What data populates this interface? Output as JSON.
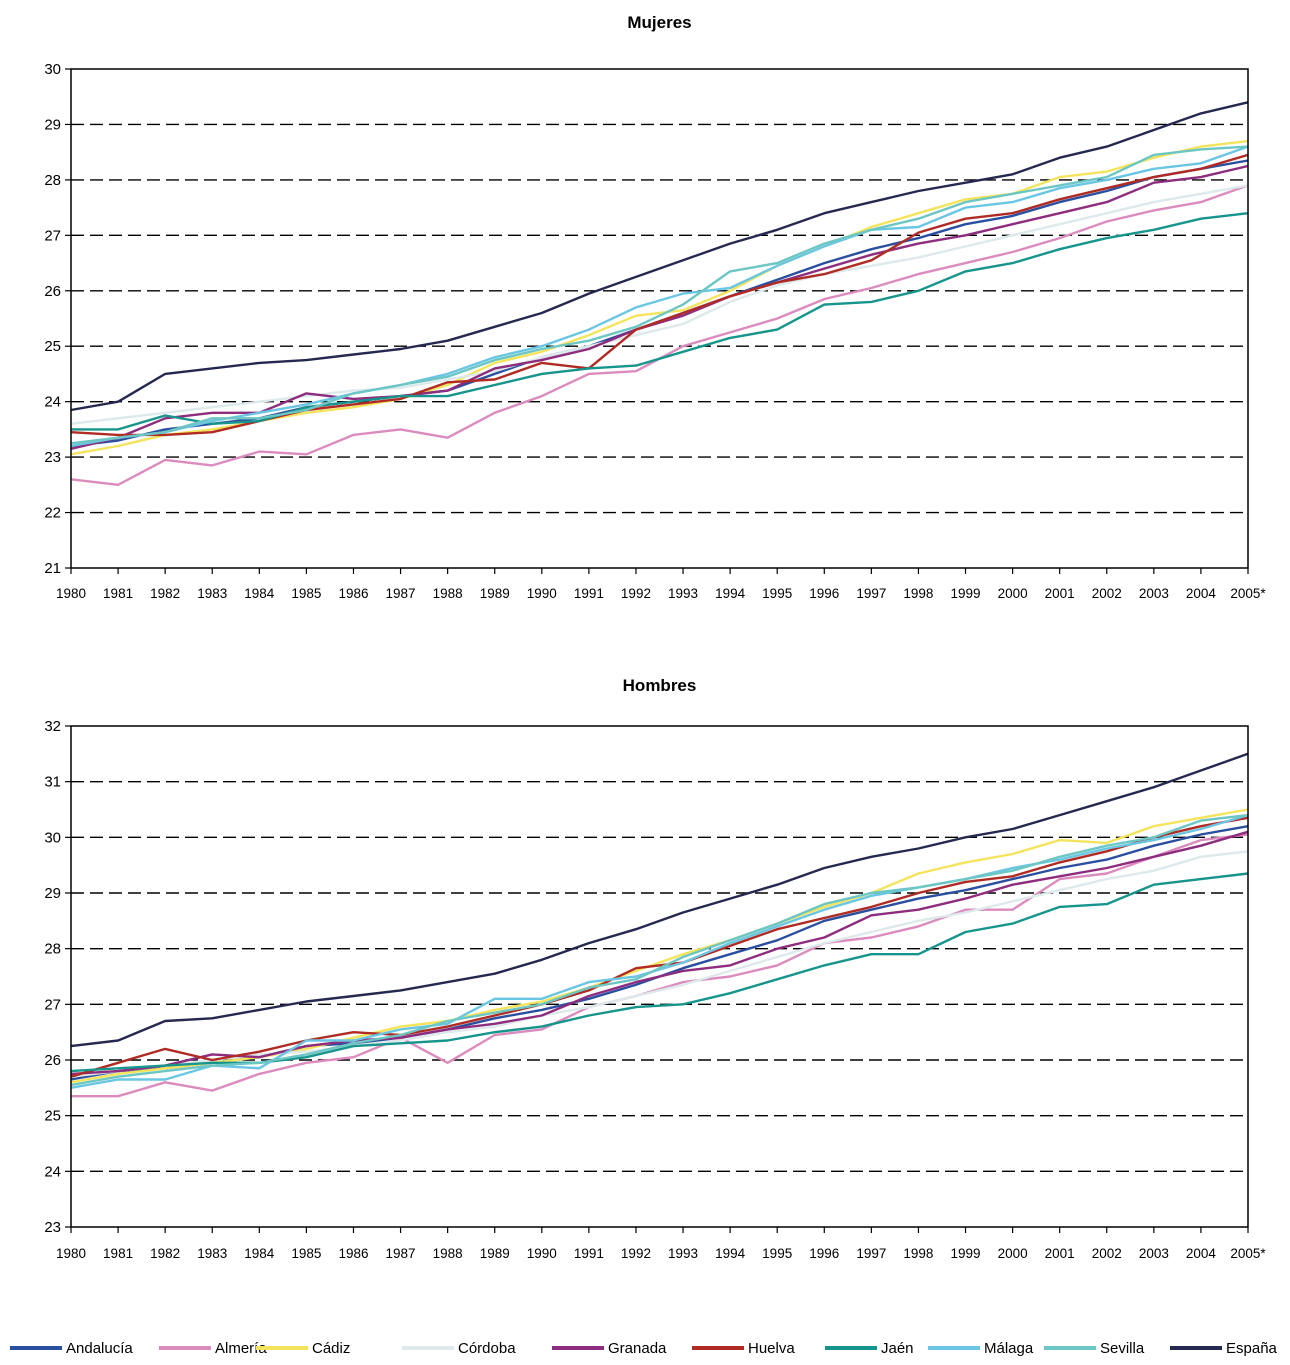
{
  "chart_data": [
    {
      "type": "line",
      "title": "Mujeres",
      "categories": [
        "1980",
        "1981",
        "1982",
        "1983",
        "1984",
        "1985",
        "1986",
        "1987",
        "1988",
        "1989",
        "1990",
        "1991",
        "1992",
        "1993",
        "1994",
        "1995",
        "1996",
        "1997",
        "1998",
        "1999",
        "2000",
        "2001",
        "2002",
        "2003",
        "2004",
        "2005*"
      ],
      "ylim": [
        21,
        30
      ],
      "yticks": [
        21,
        22,
        23,
        24,
        25,
        26,
        27,
        28,
        29,
        30
      ],
      "grid": "horizontal dashed",
      "series": [
        {
          "name": "Andalucía",
          "color": "#2a4fa0",
          "values": [
            23.2,
            23.3,
            23.5,
            23.6,
            23.7,
            23.9,
            24.0,
            24.1,
            24.2,
            24.5,
            24.8,
            25.0,
            25.3,
            25.6,
            25.9,
            26.2,
            26.5,
            26.75,
            26.95,
            27.2,
            27.35,
            27.6,
            27.8,
            28.05,
            28.2,
            28.35
          ]
        },
        {
          "name": "Almería",
          "color": "#dc8bbf",
          "values": [
            22.6,
            22.5,
            22.95,
            22.85,
            23.1,
            23.05,
            23.4,
            23.5,
            23.35,
            23.8,
            24.1,
            24.5,
            24.55,
            25.0,
            25.25,
            25.5,
            25.85,
            26.05,
            26.3,
            26.5,
            26.7,
            26.95,
            27.25,
            27.45,
            27.6,
            27.9
          ]
        },
        {
          "name": "Cádiz",
          "color": "#f4e45c",
          "values": [
            23.05,
            23.2,
            23.4,
            23.5,
            23.65,
            23.8,
            23.9,
            24.05,
            24.3,
            24.7,
            24.9,
            25.2,
            25.55,
            25.65,
            26.0,
            26.45,
            26.8,
            27.15,
            27.4,
            27.65,
            27.75,
            28.05,
            28.15,
            28.4,
            28.6,
            28.7
          ]
        },
        {
          "name": "Córdoba",
          "color": "#dde9ea",
          "values": [
            23.6,
            23.7,
            23.8,
            23.9,
            24.0,
            24.1,
            24.2,
            24.25,
            24.4,
            24.55,
            24.8,
            25.0,
            25.2,
            25.4,
            25.8,
            26.1,
            26.3,
            26.45,
            26.6,
            26.8,
            27.0,
            27.2,
            27.4,
            27.6,
            27.75,
            27.9
          ]
        },
        {
          "name": "Granada",
          "color": "#8e2c7e",
          "values": [
            23.15,
            23.35,
            23.7,
            23.8,
            23.8,
            24.15,
            24.05,
            24.1,
            24.2,
            24.6,
            24.75,
            24.95,
            25.3,
            25.55,
            25.9,
            26.15,
            26.4,
            26.65,
            26.85,
            27.0,
            27.2,
            27.4,
            27.6,
            27.95,
            28.05,
            28.25
          ]
        },
        {
          "name": "Huelva",
          "color": "#b02b24",
          "values": [
            23.45,
            23.4,
            23.4,
            23.45,
            23.65,
            23.85,
            23.95,
            24.05,
            24.35,
            24.4,
            24.7,
            24.6,
            25.3,
            25.6,
            25.9,
            26.15,
            26.3,
            26.55,
            27.05,
            27.3,
            27.4,
            27.65,
            27.85,
            28.05,
            28.2,
            28.45
          ]
        },
        {
          "name": "Jaén",
          "color": "#17958c",
          "values": [
            23.5,
            23.5,
            23.75,
            23.6,
            23.65,
            23.9,
            24.0,
            24.1,
            24.1,
            24.3,
            24.5,
            24.6,
            24.65,
            24.9,
            25.15,
            25.3,
            25.75,
            25.8,
            26.0,
            26.35,
            26.5,
            26.75,
            26.95,
            27.1,
            27.3,
            27.4
          ]
        },
        {
          "name": "Málaga",
          "color": "#6ac6e3",
          "values": [
            23.2,
            23.35,
            23.45,
            23.65,
            23.8,
            23.95,
            24.15,
            24.3,
            24.5,
            24.8,
            25.0,
            25.3,
            25.7,
            25.95,
            26.05,
            26.45,
            26.8,
            27.1,
            27.15,
            27.5,
            27.6,
            27.85,
            28.0,
            28.2,
            28.3,
            28.6
          ]
        },
        {
          "name": "Sevilla",
          "color": "#6cc6c3",
          "values": [
            23.25,
            23.35,
            23.45,
            23.7,
            23.7,
            23.85,
            24.15,
            24.3,
            24.45,
            24.75,
            24.95,
            25.1,
            25.35,
            25.75,
            26.35,
            26.5,
            26.85,
            27.1,
            27.3,
            27.6,
            27.75,
            27.9,
            28.05,
            28.45,
            28.55,
            28.6
          ]
        },
        {
          "name": "España",
          "color": "#25294f",
          "values": [
            23.85,
            24.0,
            24.5,
            24.6,
            24.7,
            24.75,
            24.85,
            24.95,
            25.1,
            25.35,
            25.6,
            25.95,
            26.25,
            26.55,
            26.85,
            27.1,
            27.4,
            27.6,
            27.8,
            27.95,
            28.1,
            28.4,
            28.6,
            28.9,
            29.2,
            29.4
          ]
        }
      ]
    },
    {
      "type": "line",
      "title": "Hombres",
      "categories": [
        "1980",
        "1981",
        "1982",
        "1983",
        "1984",
        "1985",
        "1986",
        "1987",
        "1988",
        "1989",
        "1990",
        "1991",
        "1992",
        "1993",
        "1994",
        "1995",
        "1996",
        "1997",
        "1998",
        "1999",
        "2000",
        "2001",
        "2002",
        "2003",
        "2004",
        "2005*"
      ],
      "ylim": [
        23,
        32
      ],
      "yticks": [
        23,
        24,
        25,
        26,
        27,
        28,
        29,
        30,
        31,
        32
      ],
      "grid": "horizontal dashed",
      "series": [
        {
          "name": "Andalucía",
          "color": "#2a4fa0",
          "values": [
            25.65,
            25.8,
            25.85,
            25.95,
            26.05,
            26.25,
            26.3,
            26.4,
            26.55,
            26.75,
            26.9,
            27.1,
            27.35,
            27.65,
            27.9,
            28.15,
            28.5,
            28.7,
            28.9,
            29.05,
            29.25,
            29.45,
            29.6,
            29.85,
            30.05,
            30.2
          ]
        },
        {
          "name": "Almería",
          "color": "#dc8bbf",
          "values": [
            25.35,
            25.35,
            25.6,
            25.45,
            25.75,
            25.95,
            26.05,
            26.4,
            25.95,
            26.45,
            26.55,
            26.95,
            27.15,
            27.4,
            27.5,
            27.7,
            28.1,
            28.2,
            28.4,
            28.7,
            28.7,
            29.25,
            29.35,
            29.65,
            29.95,
            30.05
          ]
        },
        {
          "name": "Cádiz",
          "color": "#f4e45c",
          "values": [
            25.6,
            25.75,
            25.85,
            25.95,
            26.05,
            26.2,
            26.4,
            26.6,
            26.7,
            26.9,
            27.05,
            27.3,
            27.6,
            27.9,
            28.15,
            28.45,
            28.75,
            29.0,
            29.35,
            29.55,
            29.7,
            29.95,
            29.9,
            30.2,
            30.35,
            30.5
          ]
        },
        {
          "name": "Córdoba",
          "color": "#dde9ea",
          "values": [
            25.7,
            25.8,
            25.9,
            26.0,
            26.1,
            26.15,
            26.25,
            26.35,
            26.5,
            26.6,
            26.8,
            26.95,
            27.15,
            27.35,
            27.6,
            27.85,
            28.1,
            28.3,
            28.5,
            28.65,
            28.85,
            29.05,
            29.25,
            29.4,
            29.65,
            29.75
          ]
        },
        {
          "name": "Granada",
          "color": "#8e2c7e",
          "values": [
            25.75,
            25.8,
            25.9,
            26.1,
            26.05,
            26.25,
            26.35,
            26.4,
            26.55,
            26.65,
            26.8,
            27.15,
            27.4,
            27.6,
            27.7,
            28.0,
            28.2,
            28.6,
            28.7,
            28.9,
            29.15,
            29.3,
            29.45,
            29.65,
            29.85,
            30.1
          ]
        },
        {
          "name": "Huelva",
          "color": "#b02b24",
          "values": [
            25.7,
            25.95,
            26.2,
            26.0,
            26.15,
            26.35,
            26.5,
            26.45,
            26.6,
            26.8,
            27.0,
            27.25,
            27.65,
            27.75,
            28.05,
            28.35,
            28.55,
            28.75,
            29.0,
            29.2,
            29.3,
            29.55,
            29.75,
            30.0,
            30.2,
            30.35
          ]
        },
        {
          "name": "Jaén",
          "color": "#17958c",
          "values": [
            25.8,
            25.85,
            25.9,
            25.95,
            25.95,
            26.05,
            26.25,
            26.3,
            26.35,
            26.5,
            26.6,
            26.8,
            26.95,
            27.0,
            27.2,
            27.45,
            27.7,
            27.9,
            27.9,
            28.3,
            28.45,
            28.75,
            28.8,
            29.15,
            29.25,
            29.35
          ]
        },
        {
          "name": "Málaga",
          "color": "#6ac6e3",
          "values": [
            25.5,
            25.65,
            25.65,
            25.9,
            25.85,
            26.35,
            26.35,
            26.55,
            26.65,
            27.1,
            27.1,
            27.4,
            27.5,
            27.75,
            28.1,
            28.4,
            28.7,
            28.95,
            29.1,
            29.25,
            29.45,
            29.6,
            29.8,
            29.95,
            30.15,
            30.4
          ]
        },
        {
          "name": "Sevilla",
          "color": "#6cc6c3",
          "values": [
            25.55,
            25.7,
            25.8,
            25.9,
            25.95,
            26.1,
            26.3,
            26.45,
            26.7,
            26.85,
            27.0,
            27.3,
            27.45,
            27.85,
            28.15,
            28.45,
            28.8,
            29.0,
            29.1,
            29.25,
            29.4,
            29.65,
            29.85,
            30.0,
            30.3,
            30.4
          ]
        },
        {
          "name": "España",
          "color": "#25294f",
          "values": [
            26.25,
            26.35,
            26.7,
            26.75,
            26.9,
            27.05,
            27.15,
            27.25,
            27.4,
            27.55,
            27.8,
            28.1,
            28.35,
            28.65,
            28.9,
            29.15,
            29.45,
            29.65,
            29.8,
            30.0,
            30.15,
            30.4,
            30.65,
            30.9,
            31.2,
            31.5
          ]
        }
      ]
    }
  ]
}
